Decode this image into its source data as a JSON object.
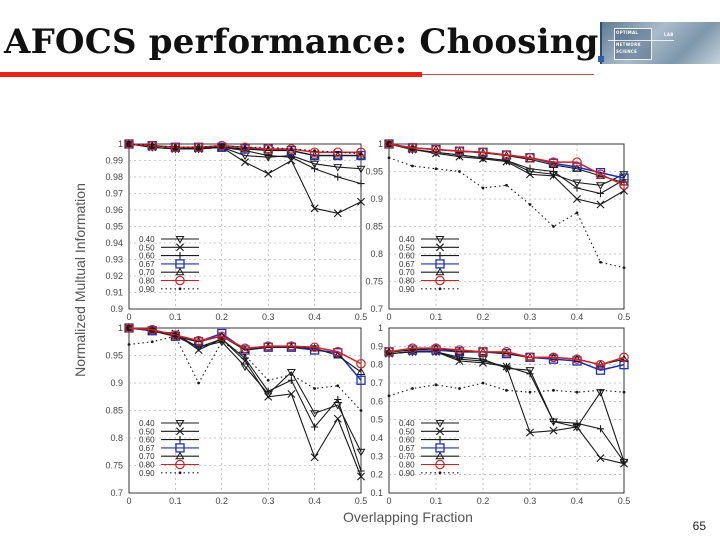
{
  "slide": {
    "title": "AFOCS performance: Choosing β",
    "page_number": "65"
  },
  "logo": {
    "line1": "OPTIMAL",
    "line2": "NETWORK",
    "line3": "SCIENCE",
    "tag": "LAB"
  },
  "chart_data": [
    {
      "panel": "top-left",
      "type": "line",
      "x": [
        0,
        0.05,
        0.1,
        0.15,
        0.2,
        0.25,
        0.3,
        0.35,
        0.4,
        0.45,
        0.5
      ],
      "xticks": [
        "0",
        "0.1",
        "0.2",
        "0.3",
        "0.4",
        "0.5"
      ],
      "ylim": [
        0.9,
        1
      ],
      "yticks": [
        "0.9",
        "0.91",
        "0.92",
        "0.93",
        "0.94",
        "0.95",
        "0.96",
        "0.97",
        "0.98",
        "0.99",
        "1"
      ],
      "series": [
        {
          "name": "0.40",
          "values": [
            1,
            0.998,
            0.997,
            0.997,
            0.998,
            0.993,
            0.992,
            0.993,
            0.988,
            0.986,
            0.985
          ]
        },
        {
          "name": "0.50",
          "values": [
            1,
            0.998,
            0.997,
            0.997,
            0.998,
            0.989,
            0.982,
            0.99,
            0.961,
            0.958,
            0.965
          ]
        },
        {
          "name": "0.60",
          "values": [
            1,
            0.999,
            0.998,
            0.997,
            0.998,
            0.996,
            0.993,
            0.992,
            0.985,
            0.98,
            0.976
          ]
        },
        {
          "name": "0.67",
          "values": [
            1,
            0.999,
            0.998,
            0.998,
            0.998,
            0.997,
            0.997,
            0.996,
            0.993,
            0.993,
            0.993
          ]
        },
        {
          "name": "0.70",
          "values": [
            1,
            0.999,
            0.998,
            0.998,
            0.998,
            0.997,
            0.996,
            0.996,
            0.993,
            0.993,
            0.993
          ]
        },
        {
          "name": "0.80",
          "values": [
            1,
            0.999,
            0.998,
            0.998,
            0.999,
            0.998,
            0.997,
            0.997,
            0.995,
            0.995,
            0.995
          ]
        },
        {
          "name": "0.90",
          "values": [
            1,
            0.999,
            0.998,
            0.998,
            0.999,
            0.998,
            0.998,
            0.997,
            0.996,
            0.995,
            0.994
          ]
        }
      ]
    },
    {
      "panel": "top-right",
      "type": "line",
      "x": [
        0,
        0.05,
        0.1,
        0.15,
        0.2,
        0.25,
        0.3,
        0.35,
        0.4,
        0.45,
        0.5
      ],
      "xticks": [
        "0",
        "0.1",
        "0.2",
        "0.3",
        "0.4",
        "0.5"
      ],
      "ylim": [
        0.7,
        1
      ],
      "yticks": [
        "0.7",
        "0.75",
        "0.8",
        "0.85",
        "0.9",
        "0.95",
        "1"
      ],
      "series": [
        {
          "name": "0.40",
          "values": [
            1,
            0.99,
            0.985,
            0.98,
            0.975,
            0.97,
            0.95,
            0.945,
            0.93,
            0.925,
            0.945
          ]
        },
        {
          "name": "0.50",
          "values": [
            1,
            0.99,
            0.983,
            0.977,
            0.973,
            0.968,
            0.945,
            0.942,
            0.9,
            0.89,
            0.915
          ]
        },
        {
          "name": "0.60",
          "values": [
            1,
            0.99,
            0.985,
            0.98,
            0.975,
            0.97,
            0.955,
            0.95,
            0.92,
            0.91,
            0.935
          ]
        },
        {
          "name": "0.67",
          "values": [
            1,
            0.993,
            0.99,
            0.987,
            0.985,
            0.98,
            0.975,
            0.965,
            0.958,
            0.948,
            0.938
          ]
        },
        {
          "name": "0.70",
          "values": [
            1,
            0.993,
            0.99,
            0.987,
            0.984,
            0.979,
            0.972,
            0.962,
            0.955,
            0.942,
            0.93
          ]
        },
        {
          "name": "0.80",
          "values": [
            1,
            0.993,
            0.99,
            0.987,
            0.985,
            0.98,
            0.975,
            0.967,
            0.967,
            0.945,
            0.925
          ]
        },
        {
          "name": "0.90",
          "values": [
            0.975,
            0.96,
            0.955,
            0.95,
            0.92,
            0.925,
            0.89,
            0.85,
            0.875,
            0.785,
            0.775
          ]
        }
      ]
    },
    {
      "panel": "bottom-left",
      "type": "line",
      "x": [
        0,
        0.05,
        0.1,
        0.15,
        0.2,
        0.25,
        0.3,
        0.35,
        0.4,
        0.45,
        0.5
      ],
      "xticks": [
        "0",
        "0.1",
        "0.2",
        "0.3",
        "0.4",
        "0.5"
      ],
      "ylim": [
        0.7,
        1
      ],
      "yticks": [
        "0.7",
        "0.75",
        "0.8",
        "0.85",
        "0.9",
        "0.95",
        "1"
      ],
      "series": [
        {
          "name": "0.40",
          "values": [
            1,
            0.995,
            0.985,
            0.965,
            0.975,
            0.93,
            0.88,
            0.92,
            0.845,
            0.86,
            0.775
          ]
        },
        {
          "name": "0.50",
          "values": [
            1,
            0.995,
            0.99,
            0.96,
            0.98,
            0.94,
            0.875,
            0.88,
            0.765,
            0.835,
            0.73
          ]
        },
        {
          "name": "0.60",
          "values": [
            1,
            0.995,
            0.988,
            0.965,
            0.98,
            0.945,
            0.885,
            0.905,
            0.82,
            0.87,
            0.74
          ]
        },
        {
          "name": "0.67",
          "values": [
            1,
            0.995,
            0.985,
            0.975,
            0.99,
            0.96,
            0.965,
            0.965,
            0.96,
            0.955,
            0.905
          ]
        },
        {
          "name": "0.70",
          "values": [
            1,
            0.995,
            0.985,
            0.975,
            0.985,
            0.96,
            0.965,
            0.965,
            0.963,
            0.95,
            0.92
          ]
        },
        {
          "name": "0.80",
          "values": [
            1,
            0.997,
            0.987,
            0.977,
            0.985,
            0.963,
            0.967,
            0.967,
            0.965,
            0.957,
            0.935
          ]
        },
        {
          "name": "0.90",
          "values": [
            0.97,
            0.975,
            0.985,
            0.9,
            0.975,
            0.95,
            0.905,
            0.915,
            0.89,
            0.895,
            0.85
          ]
        }
      ]
    },
    {
      "panel": "bottom-right",
      "type": "line",
      "x": [
        0,
        0.05,
        0.1,
        0.15,
        0.2,
        0.25,
        0.3,
        0.35,
        0.4,
        0.45,
        0.5
      ],
      "xticks": [
        "0",
        "0.1",
        "0.2",
        "0.3",
        "0.4",
        "0.5"
      ],
      "ylim": [
        0.1,
        1
      ],
      "yticks": [
        "0.1",
        "0.2",
        "0.3",
        "0.4",
        "0.5",
        "0.6",
        "0.7",
        "0.8",
        "0.9",
        "1"
      ],
      "series": [
        {
          "name": "0.40",
          "values": [
            0.86,
            0.87,
            0.87,
            0.84,
            0.83,
            0.78,
            0.77,
            0.49,
            0.46,
            0.65,
            0.27
          ]
        },
        {
          "name": "0.50",
          "values": [
            0.86,
            0.87,
            0.87,
            0.82,
            0.81,
            0.79,
            0.43,
            0.44,
            0.46,
            0.29,
            0.26
          ]
        },
        {
          "name": "0.60",
          "values": [
            0.86,
            0.87,
            0.87,
            0.83,
            0.82,
            0.79,
            0.75,
            0.49,
            0.48,
            0.45,
            0.27
          ]
        },
        {
          "name": "0.67",
          "values": [
            0.87,
            0.88,
            0.88,
            0.87,
            0.87,
            0.86,
            0.84,
            0.83,
            0.82,
            0.77,
            0.8
          ]
        },
        {
          "name": "0.70",
          "values": [
            0.87,
            0.88,
            0.89,
            0.87,
            0.87,
            0.86,
            0.84,
            0.84,
            0.83,
            0.8,
            0.83
          ]
        },
        {
          "name": "0.80",
          "values": [
            0.87,
            0.89,
            0.89,
            0.88,
            0.87,
            0.87,
            0.84,
            0.84,
            0.83,
            0.8,
            0.84
          ]
        },
        {
          "name": "0.90",
          "values": [
            0.63,
            0.67,
            0.69,
            0.67,
            0.7,
            0.66,
            0.65,
            0.66,
            0.65,
            0.66,
            0.65
          ]
        }
      ]
    }
  ],
  "axes": {
    "ylabel": "Normalized Multual Information",
    "xlabel": "Overlapping Fraction"
  },
  "legend": {
    "labels": [
      "0.40",
      "0.50",
      "0.60",
      "0.67",
      "0.70",
      "0.80",
      "0.90"
    ],
    "markers": [
      "tri-down",
      "x",
      "plus",
      "square",
      "tri-up",
      "circle",
      "dot"
    ],
    "colors": [
      "#1a1a1a",
      "#1a1a1a",
      "#1a1a1a",
      "#1d2fc0",
      "#1a1a1a",
      "#d42020",
      "#1a1a1a"
    ],
    "dashed": [
      false,
      false,
      false,
      false,
      false,
      false,
      true
    ]
  }
}
